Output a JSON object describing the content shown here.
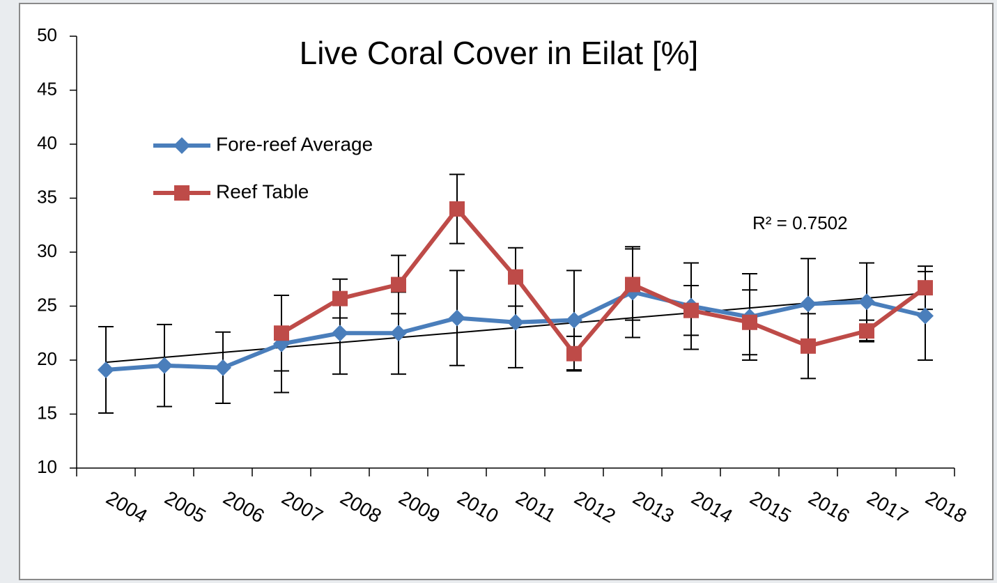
{
  "chart_data": {
    "type": "line",
    "title": "Live Coral Cover in Eilat [%]",
    "categories": [
      "2004",
      "2005",
      "2006",
      "2007",
      "2008",
      "2009",
      "2010",
      "2011",
      "2012",
      "2013",
      "2014",
      "2015",
      "2016",
      "2017",
      "2018"
    ],
    "series": [
      {
        "name": "Fore-reef Average",
        "color": "#4a7ebb",
        "marker": "diamond",
        "values": [
          19.1,
          19.5,
          19.3,
          21.5,
          22.5,
          22.5,
          23.9,
          23.5,
          23.7,
          26.3,
          25.0,
          24.0,
          25.2,
          25.4,
          24.1
        ],
        "errors": [
          4.0,
          3.8,
          3.3,
          4.5,
          3.8,
          3.8,
          4.4,
          4.2,
          4.6,
          4.2,
          4.0,
          4.0,
          4.2,
          3.6,
          4.1
        ]
      },
      {
        "name": "Reef Table",
        "color": "#be4b48",
        "marker": "square",
        "values": [
          null,
          null,
          null,
          22.5,
          25.7,
          27.0,
          34.0,
          27.7,
          20.6,
          27.0,
          24.6,
          23.5,
          21.3,
          22.7,
          26.7
        ],
        "errors": [
          null,
          null,
          null,
          3.5,
          1.8,
          2.7,
          3.2,
          2.7,
          1.6,
          3.3,
          2.3,
          3.0,
          3.0,
          1.0,
          2.0
        ]
      }
    ],
    "trendline": {
      "start": 19.8,
      "end": 26.2,
      "color": "#000000",
      "label": "R² = 0.7502"
    },
    "ylim": [
      10,
      50
    ],
    "yticks": [
      10,
      15,
      20,
      25,
      30,
      35,
      40,
      45,
      50
    ],
    "legend": "upper left"
  }
}
